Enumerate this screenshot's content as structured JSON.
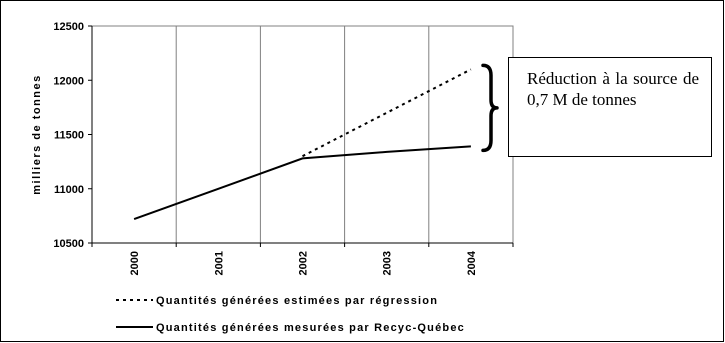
{
  "chart_data": {
    "type": "line",
    "title": "",
    "xlabel": "",
    "ylabel": "milliers de tonnes",
    "x": [
      2000,
      2001,
      2002,
      2003,
      2004
    ],
    "x_tick_labels": [
      "2000",
      "2001",
      "2002",
      "2003",
      "2004"
    ],
    "ylim": [
      10500,
      12500
    ],
    "y_ticks": [
      10500,
      11000,
      11500,
      12000,
      12500
    ],
    "grid": "vertical",
    "legend_position": "bottom",
    "series": [
      {
        "name": "Quantités générées estimées par régression",
        "style": "dotted",
        "color": "#000000",
        "points": [
          [
            2002,
            11300
          ],
          [
            2003,
            11700
          ],
          [
            2004,
            12100
          ]
        ]
      },
      {
        "name": "Quantités générées mesurées par Recyc-Québec",
        "style": "solid",
        "color": "#000000",
        "points": [
          [
            2000,
            10720
          ],
          [
            2001,
            11000
          ],
          [
            2002,
            11280
          ],
          [
            2003,
            11340
          ],
          [
            2004,
            11390
          ]
        ]
      }
    ],
    "annotation": {
      "text": "Réduction à la source de 0,7 M de tonnes",
      "brace_range": [
        11390,
        12100
      ]
    }
  }
}
